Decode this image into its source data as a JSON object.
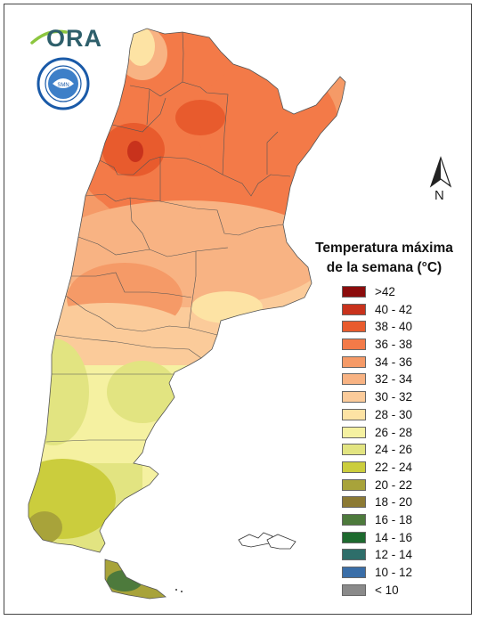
{
  "logo": {
    "text": "ORA",
    "colors": {
      "arc": "#8cc63f",
      "text": "#2e5f6b"
    }
  },
  "badge": {
    "name": "smn-seal",
    "ring_text": "SERVICIO METEOROLÓGICO NACIONAL · ARGENTINA",
    "colors": {
      "ring": "#1a5aa8",
      "fill": "#ffffff"
    }
  },
  "compass": {
    "label": "N"
  },
  "legend": {
    "title_line1": "Temperatura máxima",
    "title_line2": "de la semana (°C)",
    "items": [
      {
        "label": ">42",
        "color": "#8b0c0c"
      },
      {
        "label": "40 - 42",
        "color": "#c8321c"
      },
      {
        "label": "38 - 40",
        "color": "#e85b2d"
      },
      {
        "label": "36 - 38",
        "color": "#f37a48"
      },
      {
        "label": "34 - 36",
        "color": "#f59a67"
      },
      {
        "label": "32 - 34",
        "color": "#f8b383"
      },
      {
        "label": "30 - 32",
        "color": "#fbcb9a"
      },
      {
        "label": "28 - 30",
        "color": "#fde3a4"
      },
      {
        "label": "26 - 28",
        "color": "#f5f1a1"
      },
      {
        "label": "24 - 26",
        "color": "#e2e481"
      },
      {
        "label": "22 - 24",
        "color": "#cbcd3d"
      },
      {
        "label": "20 - 22",
        "color": "#a8a33a"
      },
      {
        "label": "18 - 20",
        "color": "#8c7a34"
      },
      {
        "label": "16 - 18",
        "color": "#4d7a3c"
      },
      {
        "label": "14 - 16",
        "color": "#1d6a2e"
      },
      {
        "label": "12 - 14",
        "color": "#2e6e6a"
      },
      {
        "label": "10 - 12",
        "color": "#3a6ea8"
      },
      {
        "label": "< 10",
        "color": "#8a8a8a"
      }
    ]
  }
}
